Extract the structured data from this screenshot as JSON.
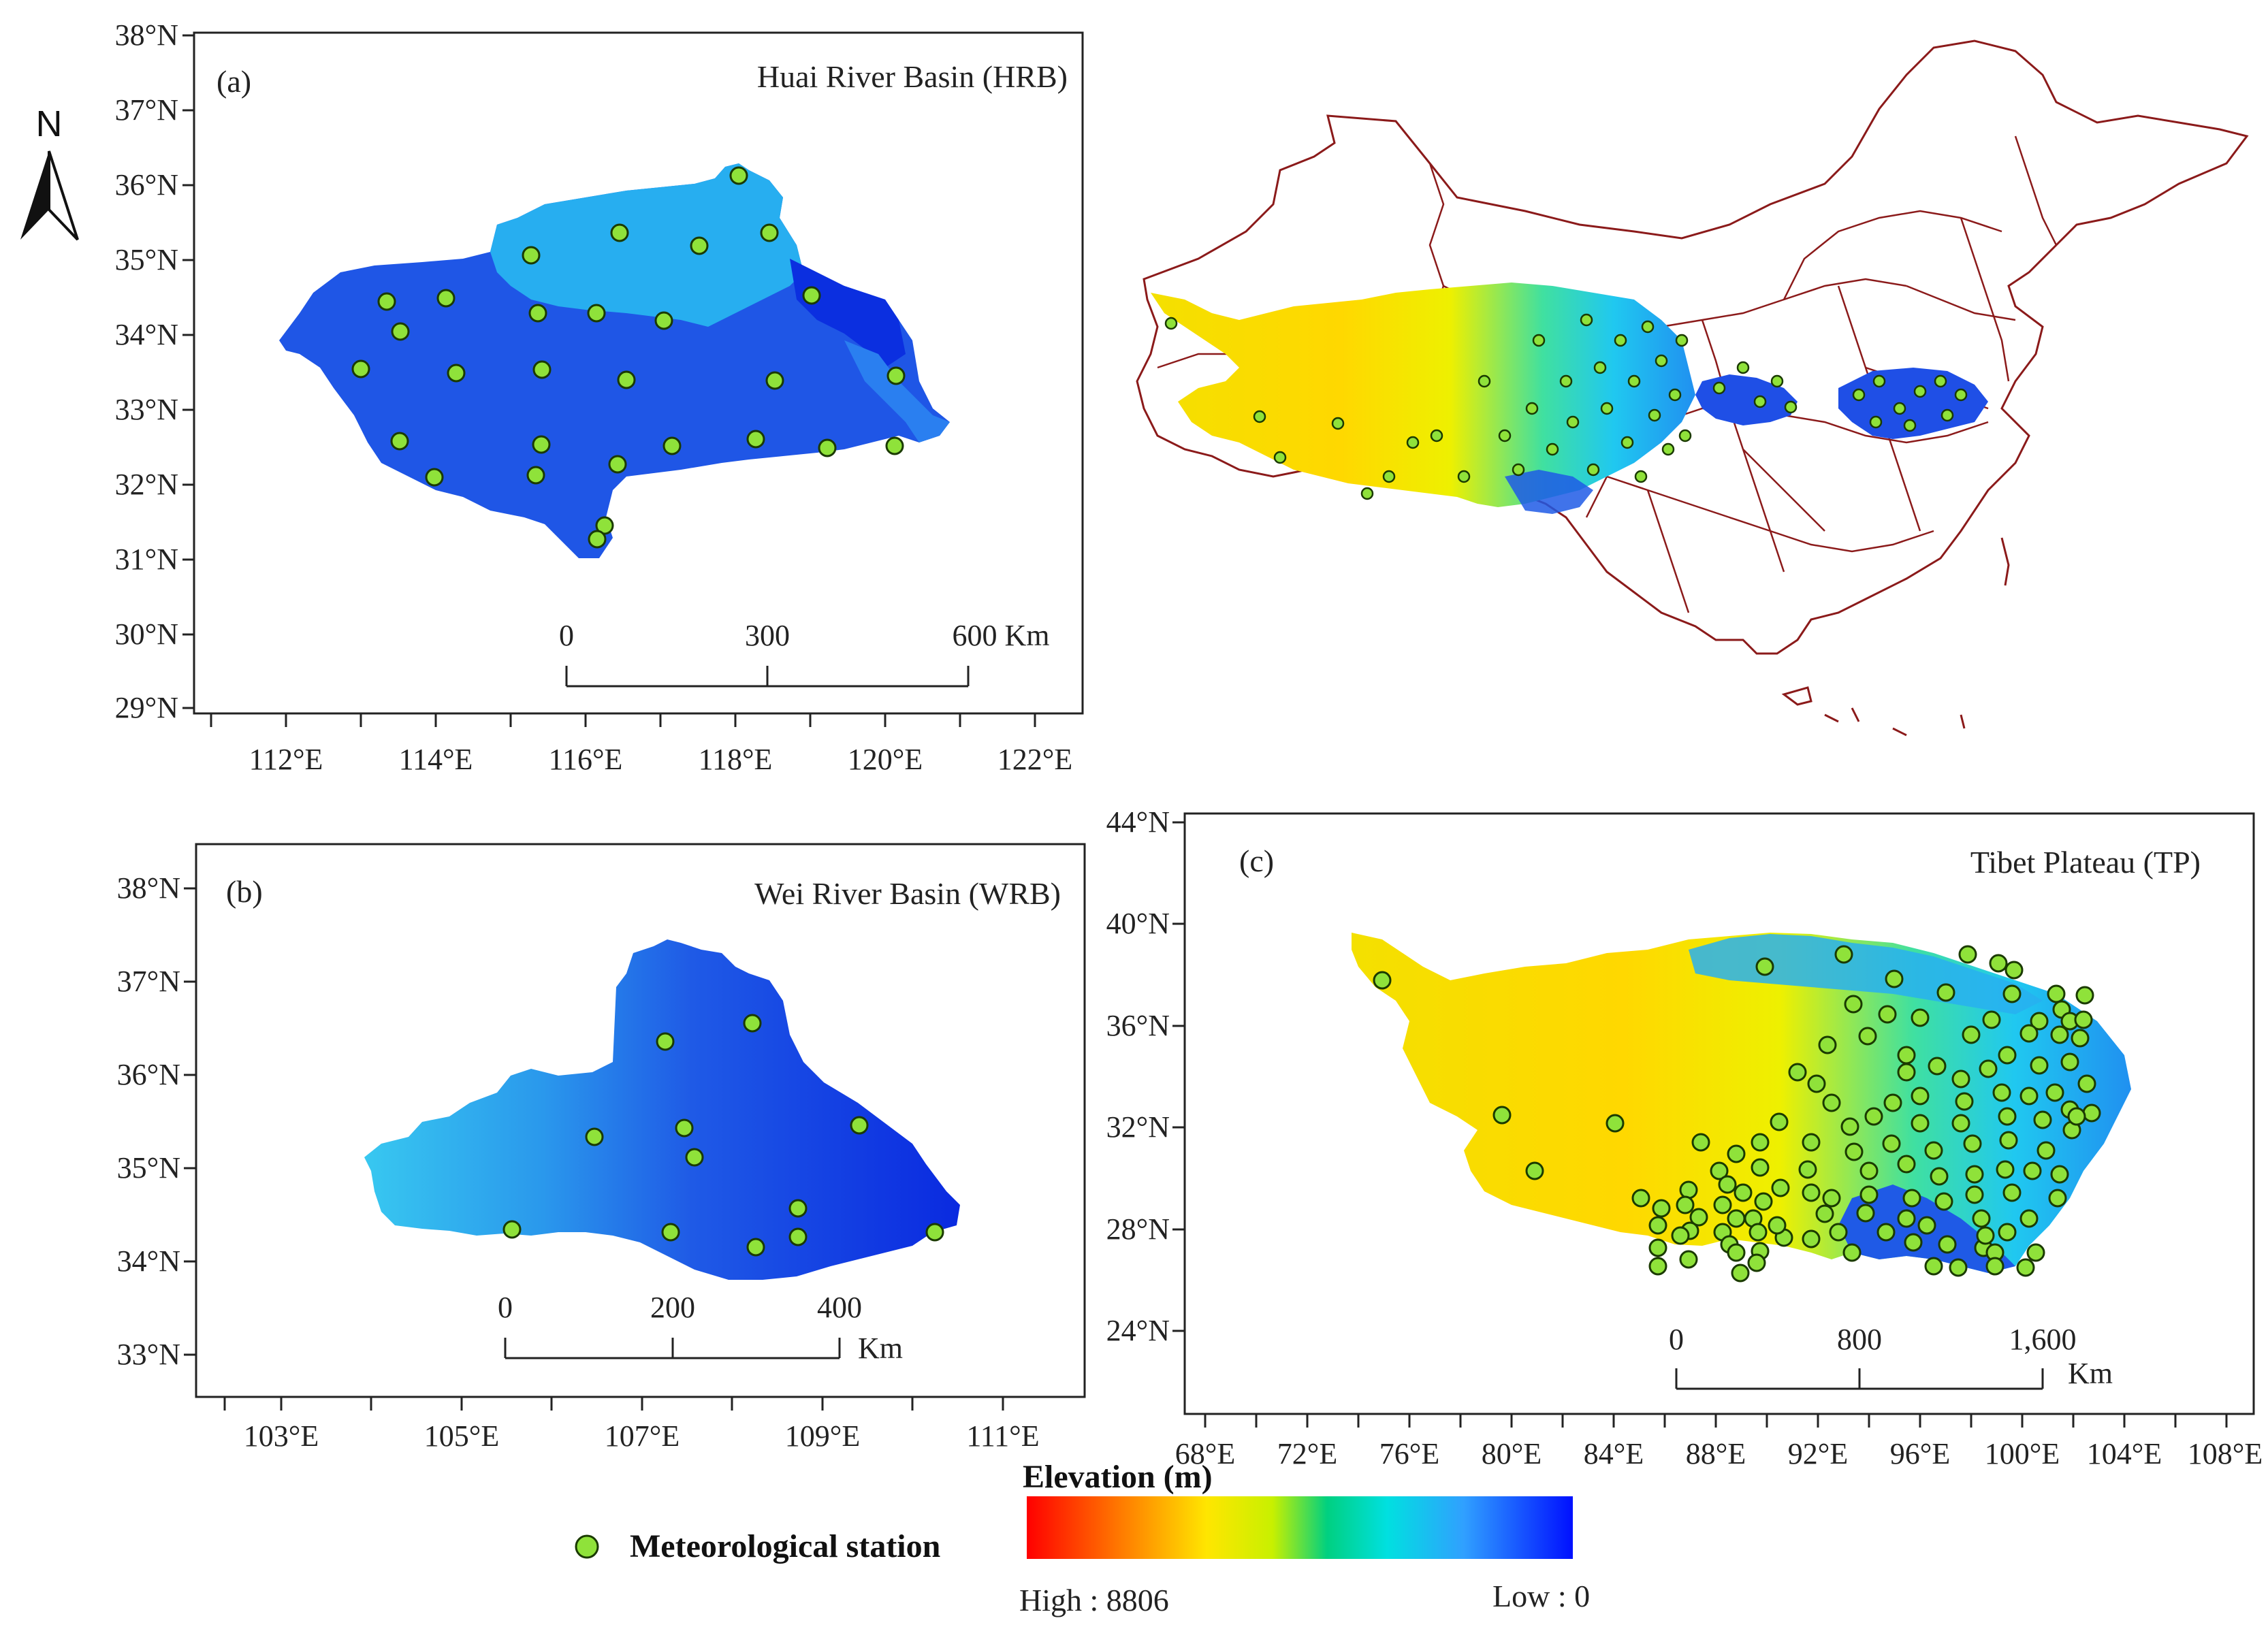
{
  "north_arrow": {
    "label": "N"
  },
  "panel_a": {
    "label": "(a)",
    "title": "Huai River Basin (HRB)",
    "lat_ticks": [
      "38°N",
      "37°N",
      "36°N",
      "35°N",
      "34°N",
      "33°N",
      "32°N",
      "31°N",
      "30°N",
      "29°N"
    ],
    "lon_ticks": [
      "112°E",
      "114°E",
      "116°E",
      "118°E",
      "120°E",
      "122°E"
    ],
    "scale": [
      "0",
      "300",
      "600 Km"
    ],
    "colors": [
      "#27aef0",
      "#1f56e6",
      "#0b2fe0"
    ]
  },
  "panel_b": {
    "label": "(b)",
    "title": "Wei River Basin (WRB)",
    "lat_ticks": [
      "38°N",
      "37°N",
      "36°N",
      "35°N",
      "34°N",
      "33°N"
    ],
    "lon_ticks": [
      "103°E",
      "105°E",
      "107°E",
      "109°E",
      "111°E"
    ],
    "scale": [
      "0",
      "200",
      "400",
      "Km"
    ]
  },
  "panel_c": {
    "label": "(c)",
    "title": "Tibet Plateau (TP)",
    "lat_ticks": [
      "44°N",
      "40°N",
      "36°N",
      "32°N",
      "28°N",
      "24°N"
    ],
    "lon_ticks": [
      "68°E",
      "72°E",
      "76°E",
      "80°E",
      "84°E",
      "88°E",
      "92°E",
      "96°E",
      "100°E",
      "104°E",
      "108°E"
    ],
    "scale": [
      "0",
      "800",
      "1,600",
      "Km"
    ]
  },
  "china_map": {
    "border_color": "#8b1a1a"
  },
  "legend": {
    "station_label": "Meteorological station",
    "station_color": "#8fe23a",
    "elevation_title": "Elevation (m)",
    "high_label": "High : 8806",
    "low_label": "Low : 0",
    "ramp_colors": [
      "#ff0000",
      "#ff7a00",
      "#ffe000",
      "#c8f000",
      "#00d080",
      "#00e0e0",
      "#30a0ff",
      "#0020ff"
    ]
  }
}
